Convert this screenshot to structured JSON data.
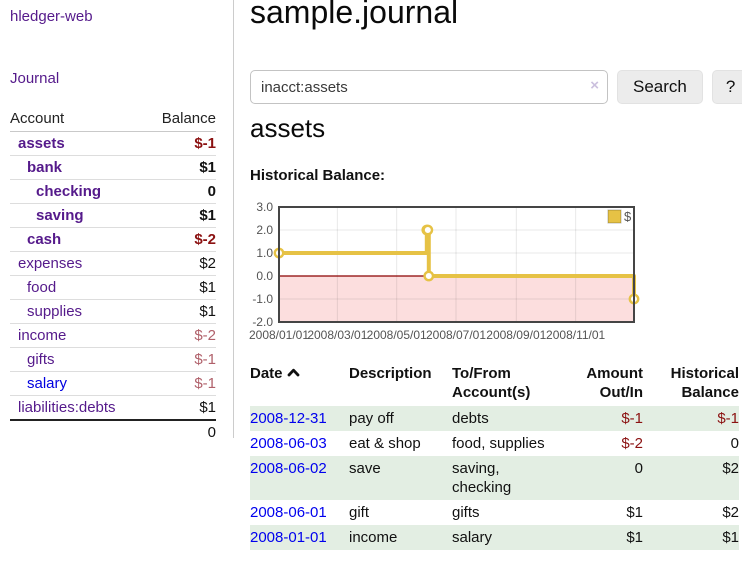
{
  "brand": "hledger-web",
  "sidebar": {
    "journal_link": "Journal",
    "account_header": "Account",
    "balance_header": "Balance",
    "rows": [
      {
        "name": "assets",
        "balance": "$-1",
        "indent": 1,
        "bold": true,
        "amount_class": "neg"
      },
      {
        "name": "bank",
        "balance": "$1",
        "indent": 2,
        "bold": true,
        "amount_class": "pos"
      },
      {
        "name": "checking",
        "balance": "0",
        "indent": 3,
        "bold": true,
        "amount_class": "pos"
      },
      {
        "name": "saving",
        "balance": "$1",
        "indent": 3,
        "bold": true,
        "amount_class": "pos"
      },
      {
        "name": "cash",
        "balance": "$-2",
        "indent": 2,
        "bold": true,
        "amount_class": "neg"
      },
      {
        "name": "expenses",
        "balance": "$2",
        "indent": 1,
        "bold": false,
        "amount_class": "pos"
      },
      {
        "name": "food",
        "balance": "$1",
        "indent": 2,
        "bold": false,
        "amount_class": "pos"
      },
      {
        "name": "supplies",
        "balance": "$1",
        "indent": 2,
        "bold": false,
        "amount_class": "pos"
      },
      {
        "name": "income",
        "balance": "$-2",
        "indent": 1,
        "bold": false,
        "amount_class": "neg-dim"
      },
      {
        "name": "gifts",
        "balance": "$-1",
        "indent": 2,
        "bold": false,
        "amount_class": "neg-dim"
      },
      {
        "name": "salary",
        "balance": "$-1",
        "indent": 2,
        "bold": false,
        "amount_class": "neg-dim",
        "link_class": "blue"
      },
      {
        "name": "liabilities:debts",
        "balance": "$1",
        "indent": 1,
        "bold": false,
        "amount_class": "pos"
      }
    ],
    "total": "0"
  },
  "main": {
    "title": "sample.journal",
    "search": {
      "value": "inacct:assets",
      "clear_label": "×",
      "button_label": "Search",
      "help_label": "?"
    },
    "account_title": "assets",
    "chart_heading": "Historical Balance:"
  },
  "chart_data": {
    "type": "line",
    "title": "Historical Balance:",
    "steps": true,
    "x_range": [
      "2008-01-01",
      "2008-12-31"
    ],
    "ylim": [
      -2,
      3
    ],
    "y_ticks": [
      {
        "v": 3,
        "label": "3.0"
      },
      {
        "v": 2,
        "label": "2.0"
      },
      {
        "v": 1,
        "label": "1.0"
      },
      {
        "v": 0,
        "label": "0.0"
      },
      {
        "v": -1,
        "label": "-1.0"
      },
      {
        "v": -2,
        "label": "-2.0"
      }
    ],
    "x_ticks": [
      {
        "date": "2008-01-01",
        "label": "2008/01/01"
      },
      {
        "date": "2008-03-01",
        "label": "2008/03/01"
      },
      {
        "date": "2008-05-01",
        "label": "2008/05/01"
      },
      {
        "date": "2008-07-01",
        "label": "2008/07/01"
      },
      {
        "date": "2008-09-01",
        "label": "2008/09/01"
      },
      {
        "date": "2008-11-01",
        "label": "2008/11/01"
      }
    ],
    "series": [
      {
        "name": "$",
        "points": [
          {
            "date": "2008-01-01",
            "value": 1
          },
          {
            "date": "2008-06-01",
            "value": 2
          },
          {
            "date": "2008-06-02",
            "value": 2
          },
          {
            "date": "2008-06-03",
            "value": 0
          },
          {
            "date": "2008-12-31",
            "value": -1
          }
        ]
      }
    ],
    "legend": {
      "label": "$",
      "position": "top-right"
    },
    "colors": {
      "line": "#e6c245",
      "marker_fill": "#ffffff",
      "negative_region": "#fcdede",
      "zero_line": "#8b0000",
      "border": "#454545",
      "grid": "rgba(0,0,0,0.09)",
      "axis_text": "#545454"
    }
  },
  "register": {
    "headers": {
      "date": "Date",
      "description": "Description",
      "account": "To/From Account(s)",
      "amount": "Amount Out/In",
      "balance": "Historical Balance"
    },
    "rows": [
      {
        "date": "2008-12-31",
        "description": "pay off",
        "accounts": "debts",
        "amount": "$-1",
        "amount_class": "neg",
        "balance": "$-1",
        "balance_class": "neg",
        "shaded": true
      },
      {
        "date": "2008-06-03",
        "description": "eat & shop",
        "accounts": "food, supplies",
        "amount": "$-2",
        "amount_class": "neg",
        "balance": "0",
        "balance_class": "pos",
        "shaded": false
      },
      {
        "date": "2008-06-02",
        "description": "save",
        "accounts": "saving,\nchecking",
        "amount": "0",
        "amount_class": "pos",
        "balance": "$2",
        "balance_class": "pos",
        "shaded": true
      },
      {
        "date": "2008-06-01",
        "description": "gift",
        "accounts": "gifts",
        "amount": "$1",
        "amount_class": "pos",
        "balance": "$2",
        "balance_class": "pos",
        "shaded": false
      },
      {
        "date": "2008-01-01",
        "description": "income",
        "accounts": "salary",
        "amount": "$1",
        "amount_class": "pos",
        "balance": "$1",
        "balance_class": "pos",
        "shaded": true
      }
    ]
  }
}
